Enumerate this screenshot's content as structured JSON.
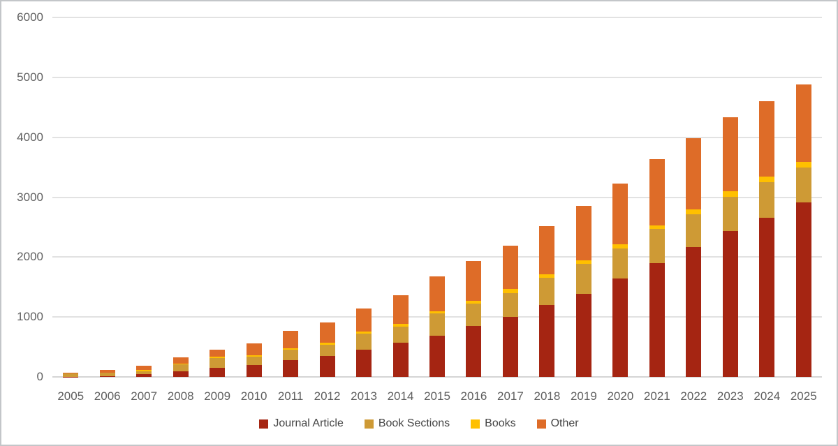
{
  "chart_data": {
    "type": "bar",
    "stacked": true,
    "categories": [
      "2005",
      "2006",
      "2007",
      "2008",
      "2009",
      "2010",
      "2011",
      "2012",
      "2013",
      "2014",
      "2015",
      "2016",
      "2017",
      "2018",
      "2019",
      "2020",
      "2021",
      "2022",
      "2023",
      "2024",
      "2025"
    ],
    "series": [
      {
        "name": "Journal Article",
        "color": "#A52512",
        "values": [
          5,
          8,
          45,
          95,
          153,
          200,
          279,
          345,
          451,
          569,
          686,
          847,
          1000,
          1200,
          1392,
          1640,
          1905,
          2165,
          2430,
          2660,
          2910
        ]
      },
      {
        "name": "Book Sections",
        "color": "#CE9A35",
        "values": [
          50,
          62,
          52,
          110,
          157,
          133,
          173,
          192,
          267,
          275,
          376,
          380,
          404,
          451,
          494,
          509,
          565,
          549,
          580,
          596,
          588
        ]
      },
      {
        "name": "Books",
        "color": "#FFC000",
        "values": [
          0,
          0,
          25,
          20,
          30,
          25,
          30,
          30,
          39,
          39,
          39,
          39,
          65,
          65,
          65,
          65,
          63,
          88,
          87,
          86,
          90
        ]
      },
      {
        "name": "Other",
        "color": "#DE6C28",
        "values": [
          15,
          50,
          70,
          97,
          110,
          203,
          282,
          346,
          380,
          482,
          576,
          674,
          720,
          802,
          903,
          1013,
          1098,
          1186,
          1237,
          1266,
          1289
        ]
      }
    ],
    "title": "",
    "xlabel": "",
    "ylabel": "",
    "ylim": [
      0,
      6000
    ],
    "ytick_labels": [
      "0",
      "1000",
      "2000",
      "3000",
      "4000",
      "5000",
      "6000"
    ],
    "grid": true,
    "gridline_color": "#D9D9D9",
    "axis_label_color": "#5F5F5F",
    "legend_position": "bottom",
    "legend_labels": [
      "Journal Article",
      "Book Sections",
      "Books",
      "Other"
    ]
  }
}
